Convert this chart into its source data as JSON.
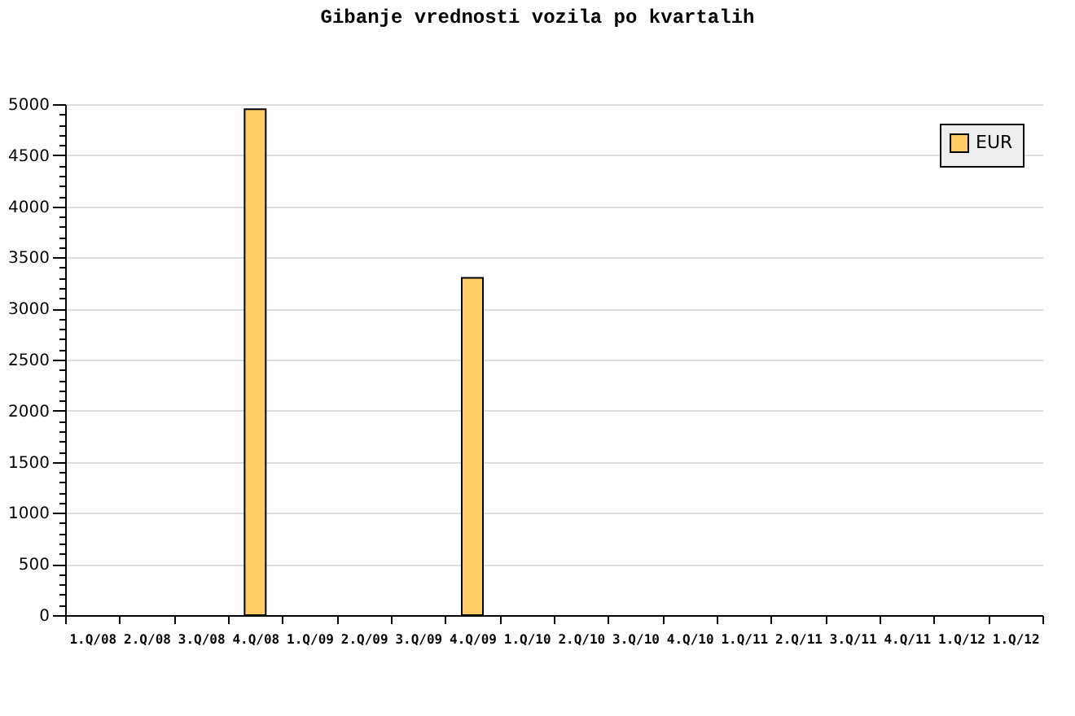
{
  "chart_data": {
    "type": "bar",
    "title": "Gibanje vrednosti vozila po kvartalih",
    "categories": [
      "1.Q/08",
      "2.Q/08",
      "3.Q/08",
      "4.Q/08",
      "1.Q/09",
      "2.Q/09",
      "3.Q/09",
      "4.Q/09",
      "1.Q/10",
      "2.Q/10",
      "3.Q/10",
      "4.Q/10",
      "1.Q/11",
      "2.Q/11",
      "3.Q/11",
      "4.Q/11",
      "1.Q/12",
      "1.Q/12"
    ],
    "series": [
      {
        "name": "EUR",
        "color": "#ffcc66",
        "values": [
          null,
          null,
          null,
          4950,
          null,
          null,
          null,
          3300,
          null,
          null,
          null,
          null,
          null,
          null,
          null,
          null,
          null,
          null
        ]
      }
    ],
    "ylim": [
      0,
      5000
    ],
    "yticks": [
      0,
      {
        "value": 100,
        "label": null
      },
      {
        "value": 200,
        "label": null
      },
      {
        "value": 300,
        "label": null
      },
      {
        "value": 400,
        "label": null
      },
      500,
      {
        "value": 600,
        "label": null
      },
      {
        "value": 700,
        "label": null
      },
      {
        "value": 800,
        "label": null
      },
      {
        "value": 900,
        "label": null
      },
      1000,
      {
        "value": 1100,
        "label": null
      },
      {
        "value": 1200,
        "label": null
      },
      {
        "value": 1300,
        "label": null
      },
      {
        "value": 1400,
        "label": null
      },
      1500,
      {
        "value": 1600,
        "label": null
      },
      {
        "value": 1700,
        "label": null
      },
      {
        "value": 1800,
        "label": null
      },
      {
        "value": 1900,
        "label": null
      },
      2000,
      {
        "value": 2100,
        "label": null
      },
      {
        "value": 2200,
        "label": null
      },
      {
        "value": 2300,
        "label": null
      },
      {
        "value": 2400,
        "label": null
      },
      2500,
      {
        "value": 2600,
        "label": null
      },
      {
        "value": 2700,
        "label": null
      },
      {
        "value": 2800,
        "label": null
      },
      {
        "value": 2900,
        "label": null
      },
      3000,
      {
        "value": 3100,
        "label": null
      },
      {
        "value": 3200,
        "label": null
      },
      {
        "value": 3300,
        "label": null
      },
      {
        "value": 3400,
        "label": null
      },
      3500,
      {
        "value": 3600,
        "label": null
      },
      {
        "value": 3700,
        "label": null
      },
      {
        "value": 3800,
        "label": null
      },
      {
        "value": 3900,
        "label": null
      },
      4000,
      {
        "value": 4100,
        "label": null
      },
      {
        "value": 4200,
        "label": null
      },
      {
        "value": 4300,
        "label": null
      },
      {
        "value": 4400,
        "label": null
      },
      4500,
      {
        "value": 4600,
        "label": null
      },
      {
        "value": 4700,
        "label": null
      },
      {
        "value": 4800,
        "label": null
      },
      {
        "value": 4900,
        "label": null
      },
      5000
    ],
    "grid": "y",
    "legend": "top right"
  }
}
